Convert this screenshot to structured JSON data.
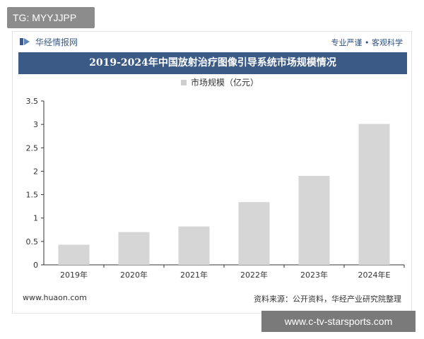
{
  "top_tag": "TG: MYYJJPP",
  "header": {
    "brand_name": "华经情报网",
    "slogan": "专业严谨 • 客观科学",
    "title": "2019-2024年中国放射治疗图像引导系统市场规模情况"
  },
  "footer": {
    "website": "www.huaon.com",
    "source": "资料来源：公开资料，华经产业研究院整理"
  },
  "watermark_text": "www.c-tv-starsports.com",
  "colors": {
    "bar": "#d6d6d6",
    "title_bg": "#3b5a86",
    "legend_swatch": "#cfcfcf"
  },
  "icons": {
    "brand": "huajing-logo"
  },
  "chart_data": {
    "type": "bar",
    "categories": [
      "2019年",
      "2020年",
      "2021年",
      "2022年",
      "2023年",
      "2024年E"
    ],
    "series": [
      {
        "name": "市场规模（亿元）",
        "values": [
          0.43,
          0.7,
          0.82,
          1.34,
          1.9,
          3.01
        ]
      }
    ],
    "ylim": [
      0,
      3.5
    ],
    "yticks": [
      0,
      0.5,
      1,
      1.5,
      2,
      2.5,
      3,
      3.5
    ],
    "ytick_labels": [
      "0",
      "0.5",
      "1",
      "1.5",
      "2",
      "2.5",
      "3",
      "3.5"
    ],
    "legend_position": "top",
    "grid": false
  }
}
